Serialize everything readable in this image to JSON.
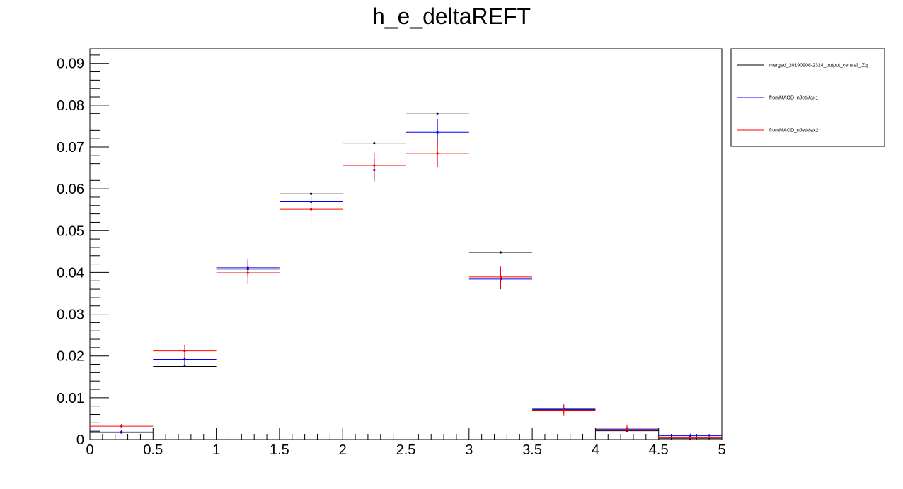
{
  "chart_data": {
    "type": "scatter",
    "title": "h_e_deltaREFT",
    "xlabel": "",
    "ylabel": "",
    "xlim": [
      0,
      5
    ],
    "ylim": [
      0,
      0.0935
    ],
    "x_tick_labels": [
      "0",
      "0.5",
      "1",
      "1.5",
      "2",
      "2.5",
      "3",
      "3.5",
      "4",
      "4.5",
      "5"
    ],
    "y_tick_labels": [
      "0",
      "0.01",
      "0.02",
      "0.03",
      "0.04",
      "0.05",
      "0.06",
      "0.07",
      "0.08",
      "0.09"
    ],
    "grid": false,
    "legend_position": "top-right",
    "bin_edges": [
      0,
      0.5,
      1,
      1.5,
      2,
      2.5,
      3,
      3.5,
      4,
      4.5,
      5
    ],
    "series": [
      {
        "name": "merged_20190908-2324_output_central_tZq",
        "color": "#000000",
        "values": [
          0.0017,
          0.0175,
          0.0408,
          0.0588,
          0.0709,
          0.0779,
          0.0448,
          0.0071,
          0.0021,
          0.0003
        ],
        "errors": [
          0.0001,
          0.0001,
          0.0001,
          0.0001,
          0.0001,
          0.0001,
          0.0001,
          0.0001,
          0.0001,
          0.0001
        ]
      },
      {
        "name": "fromMAOD_nJetMax1",
        "color": "#0000ff",
        "values": [
          0.0018,
          0.0192,
          0.0411,
          0.0569,
          0.0645,
          0.0735,
          0.0384,
          0.0073,
          0.0024,
          0.0009
        ],
        "errors": [
          0.0004,
          0.0016,
          0.0021,
          0.0024,
          0.0027,
          0.0032,
          0.0024,
          0.0011,
          0.0006,
          0.0005
        ]
      },
      {
        "name": "fromMAOD_nJetMax2",
        "color": "#ff0000",
        "values": [
          0.0032,
          0.0212,
          0.0399,
          0.0551,
          0.0656,
          0.0685,
          0.0389,
          0.007,
          0.0027,
          0.0004
        ],
        "errors": [
          0.0005,
          0.0015,
          0.0027,
          0.0032,
          0.0031,
          0.0033,
          0.0025,
          0.0012,
          0.0009,
          0.0003
        ]
      }
    ]
  }
}
